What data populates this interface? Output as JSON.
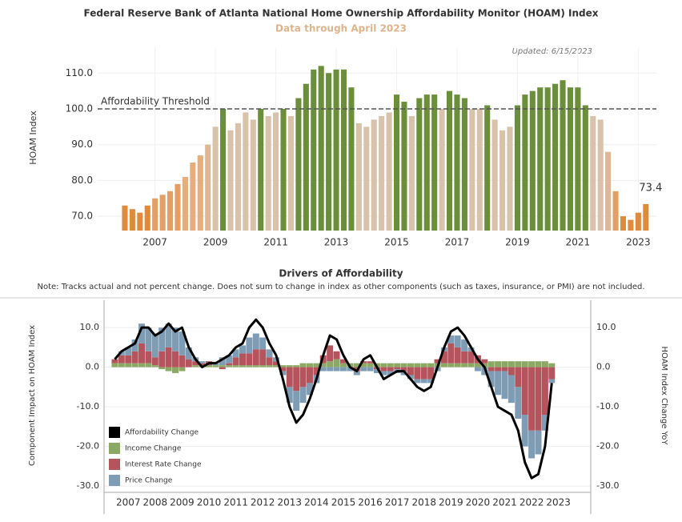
{
  "chart_data": [
    {
      "type": "bar",
      "title": "Federal Reserve Bank of Atlanta National Home Ownership Affordability Monitor (HOAM) Index",
      "subtitle": "Data through April 2023",
      "note": "Updated: 6/15/2023",
      "y_label": "HOAM Index",
      "threshold": {
        "value": 100,
        "label": "Affordability Threshold"
      },
      "x": [
        2006,
        2006.25,
        2006.5,
        2006.75,
        2007,
        2007.25,
        2007.5,
        2007.75,
        2008,
        2008.25,
        2008.5,
        2008.75,
        2009,
        2009.25,
        2009.5,
        2009.75,
        2010,
        2010.25,
        2010.5,
        2010.75,
        2011,
        2011.25,
        2011.5,
        2011.75,
        2012,
        2012.25,
        2012.5,
        2012.75,
        2013,
        2013.25,
        2013.5,
        2013.75,
        2014,
        2014.25,
        2014.5,
        2014.75,
        2015,
        2015.25,
        2015.5,
        2015.75,
        2016,
        2016.25,
        2016.5,
        2016.75,
        2017,
        2017.25,
        2017.5,
        2017.75,
        2018,
        2018.25,
        2018.5,
        2018.75,
        2019,
        2019.25,
        2019.5,
        2019.75,
        2020,
        2020.25,
        2020.5,
        2020.75,
        2021,
        2021.25,
        2021.5,
        2021.75,
        2022,
        2022.25,
        2022.5,
        2022.75,
        2023,
        2023.25
      ],
      "values": [
        73,
        72,
        71,
        73,
        75,
        76,
        77,
        79,
        81,
        85,
        87,
        90,
        95,
        100,
        94,
        96,
        99,
        97,
        100,
        98,
        99,
        100,
        98,
        103,
        107,
        111,
        112,
        110,
        111,
        111,
        106,
        96,
        95,
        97,
        98,
        99,
        104,
        102,
        98,
        103,
        104,
        104,
        100,
        105,
        104,
        103,
        100,
        100,
        101,
        97,
        94,
        95,
        101,
        104,
        105,
        106,
        106,
        107,
        108,
        106,
        106,
        101,
        98,
        97,
        88,
        77,
        70,
        69,
        71,
        73.4
      ],
      "colors": [
        "#e08a3c",
        "#e08a3c",
        "#e08a3c",
        "#e08a3c",
        "#e4a064",
        "#e4a064",
        "#e4a064",
        "#e4a064",
        "#e6ae7a",
        "#e6ae7a",
        "#e6ae7a",
        "#dcb896",
        "#d8c2aa",
        "#6b8e3a",
        "#d8c2aa",
        "#d8c2aa",
        "#d8c2aa",
        "#d8c2aa",
        "#6b8e3a",
        "#d8c2aa",
        "#d8c2aa",
        "#6b8e3a",
        "#d8c2aa",
        "#6b8e3a",
        "#6b8e3a",
        "#6b8e3a",
        "#6b8e3a",
        "#6b8e3a",
        "#6b8e3a",
        "#6b8e3a",
        "#6b8e3a",
        "#d8c2aa",
        "#d8c2aa",
        "#d8c2aa",
        "#d8c2aa",
        "#d8c2aa",
        "#6b8e3a",
        "#6b8e3a",
        "#d8c2aa",
        "#6b8e3a",
        "#6b8e3a",
        "#6b8e3a",
        "#d8c2aa",
        "#6b8e3a",
        "#6b8e3a",
        "#6b8e3a",
        "#d8c2aa",
        "#d8c2aa",
        "#6b8e3a",
        "#d8c2aa",
        "#d8c2aa",
        "#d8c2aa",
        "#6b8e3a",
        "#6b8e3a",
        "#6b8e3a",
        "#6b8e3a",
        "#6b8e3a",
        "#6b8e3a",
        "#6b8e3a",
        "#6b8e3a",
        "#6b8e3a",
        "#6b8e3a",
        "#d8c2aa",
        "#d8c2aa",
        "#dcb896",
        "#e4a064",
        "#e08a3c",
        "#e08a3c",
        "#e08a3c",
        "#e08a3c"
      ],
      "xlim": [
        2005.1,
        2023.6
      ],
      "xticks": [
        2007,
        2009,
        2011,
        2013,
        2015,
        2017,
        2019,
        2021,
        2023
      ],
      "ylim": [
        66,
        117
      ],
      "yticks": [
        {
          "value": 70,
          "label": "70.0"
        },
        {
          "value": 80,
          "label": "80.0"
        },
        {
          "value": 90,
          "label": "90.0"
        },
        {
          "value": 100,
          "label": "100.0"
        },
        {
          "value": 110,
          "label": "110.0"
        }
      ],
      "grid": true
    },
    {
      "type": "stacked_bar_line",
      "title": "Drivers of Affordability",
      "subtitle": "Note: Tracks actual and not percent change. Does not sum to change in index as other components (such as taxes, insurance, or PMI) are not included.",
      "y_label": "Component Impact on HOAM Index",
      "y2_label": "HOAM Index Change YoY",
      "legend": "bottom-left",
      "x": [
        2007,
        2007.25,
        2007.5,
        2007.75,
        2008,
        2008.25,
        2008.5,
        2008.75,
        2009,
        2009.25,
        2009.5,
        2009.75,
        2010,
        2010.25,
        2010.5,
        2010.75,
        2011,
        2011.25,
        2011.5,
        2011.75,
        2012,
        2012.25,
        2012.5,
        2012.75,
        2013,
        2013.25,
        2013.5,
        2013.75,
        2014,
        2014.25,
        2014.5,
        2014.75,
        2015,
        2015.25,
        2015.5,
        2015.75,
        2016,
        2016.25,
        2016.5,
        2016.75,
        2017,
        2017.25,
        2017.5,
        2017.75,
        2018,
        2018.25,
        2018.5,
        2018.75,
        2019,
        2019.25,
        2019.5,
        2019.75,
        2020,
        2020.25,
        2020.5,
        2020.75,
        2021,
        2021.25,
        2021.5,
        2021.75,
        2022,
        2022.25,
        2022.5,
        2022.75,
        2023,
        2023.25
      ],
      "line": {
        "name": "Affordability Change",
        "color": "#000000",
        "axis": "y2",
        "values": [
          2,
          4,
          5,
          6,
          10,
          10,
          8,
          9,
          11,
          9,
          10,
          5,
          2,
          0,
          1,
          1,
          2,
          3,
          5,
          6,
          10,
          12,
          10,
          6,
          3,
          -3,
          -10,
          -14,
          -12,
          -8,
          -3,
          3,
          8,
          7,
          3,
          0,
          -1,
          2,
          3,
          0,
          -3,
          -2,
          -1,
          -1,
          -3,
          -5,
          -6,
          -5,
          0,
          5,
          9,
          10,
          8,
          5,
          2,
          0,
          -5,
          -10,
          -11,
          -12,
          -16,
          -24,
          -28,
          -27,
          -20,
          -4
        ]
      },
      "series": [
        {
          "name": "Income Change",
          "color": "#8ca865",
          "values": [
            1,
            1,
            1,
            1,
            1,
            1,
            0.5,
            -0.5,
            -1,
            -1.5,
            -1,
            0,
            0.5,
            0.5,
            0.5,
            0.5,
            0.5,
            0.5,
            0.5,
            0.5,
            0.5,
            0.5,
            0.5,
            0.5,
            0.5,
            0.5,
            0.5,
            0.5,
            1,
            1,
            1,
            1,
            1.5,
            2,
            1,
            1,
            1,
            1,
            1,
            1,
            1,
            1,
            1,
            1,
            1,
            1,
            1,
            1,
            1,
            1,
            1,
            1,
            1,
            1,
            1,
            1,
            1.5,
            1.5,
            1.5,
            1.5,
            1.5,
            1.5,
            1.5,
            1.5,
            1.5,
            1
          ]
        },
        {
          "name": "Interest Rate Change",
          "color": "#b5545c",
          "values": [
            1,
            2,
            2,
            3,
            5,
            3,
            2,
            4,
            5,
            4,
            3,
            2,
            1,
            0.5,
            1,
            0,
            -0.5,
            0.5,
            2,
            3,
            3,
            4,
            4,
            2,
            1,
            -1,
            -5,
            -6,
            -5,
            -4,
            -2,
            2,
            4,
            2,
            1,
            0,
            -1,
            0.5,
            0.5,
            -0.5,
            -1,
            -1,
            -0.5,
            -1,
            -2,
            -3,
            -3,
            -3,
            1,
            3,
            5,
            4,
            3,
            3,
            2,
            1,
            -1,
            -1,
            -1,
            -2,
            -5,
            -12,
            -16,
            -16,
            -12,
            -3
          ]
        },
        {
          "name": "Price Change",
          "color": "#7e9db5",
          "values": [
            0,
            1,
            2,
            3,
            5,
            6,
            6,
            6,
            6,
            6,
            6,
            3,
            1,
            0.5,
            0,
            0.5,
            2,
            2,
            2,
            2,
            4,
            4,
            3,
            2,
            1,
            -1,
            -4,
            -5,
            -4,
            -3,
            -2,
            -1,
            -1,
            -1,
            -1,
            -1,
            -1,
            -1,
            -1,
            -1,
            -1,
            -1,
            -1,
            -1,
            -1,
            -1,
            -1,
            -1,
            -1,
            1,
            2,
            3,
            3,
            1,
            -1,
            -2,
            -4,
            -6,
            -7,
            -7,
            -8,
            -8,
            -7,
            -6,
            -4,
            -1
          ]
        }
      ],
      "xlim": [
        2006.6,
        2024.7
      ],
      "xticks": [
        {
          "value": 2007.5,
          "label": "2007"
        },
        {
          "value": 2008.5,
          "label": "2008"
        },
        {
          "value": 2009.5,
          "label": "2009"
        },
        {
          "value": 2010.5,
          "label": "2010"
        },
        {
          "value": 2011.5,
          "label": "2011"
        },
        {
          "value": 2012.5,
          "label": "2012"
        },
        {
          "value": 2013.5,
          "label": "2013"
        },
        {
          "value": 2014.5,
          "label": "2014"
        },
        {
          "value": 2015.5,
          "label": "2015"
        },
        {
          "value": 2016.5,
          "label": "2016"
        },
        {
          "value": 2017.5,
          "label": "2017"
        },
        {
          "value": 2018.5,
          "label": "2018"
        },
        {
          "value": 2019.5,
          "label": "2019"
        },
        {
          "value": 2020.5,
          "label": "2020"
        },
        {
          "value": 2021.5,
          "label": "2021"
        },
        {
          "value": 2022.5,
          "label": "2022"
        },
        {
          "value": 2023.5,
          "label": "2023"
        }
      ],
      "ylim": [
        -31.6,
        16.9
      ],
      "yticks": [
        {
          "value": 10,
          "label": "10.0"
        },
        {
          "value": 0,
          "label": "0.0"
        },
        {
          "value": -10,
          "label": "-10.0"
        },
        {
          "value": -20,
          "label": "-20.0"
        },
        {
          "value": -30,
          "label": "-30.0"
        }
      ],
      "y2lim": [
        -31.6,
        16.9
      ],
      "y2ticks": [
        {
          "value": 10,
          "label": "10.0"
        },
        {
          "value": 0,
          "label": "0.0"
        },
        {
          "value": -10,
          "label": "-10.0"
        },
        {
          "value": -20,
          "label": "-20.0"
        },
        {
          "value": -30,
          "label": "-30.0"
        }
      ],
      "grid": true
    }
  ]
}
